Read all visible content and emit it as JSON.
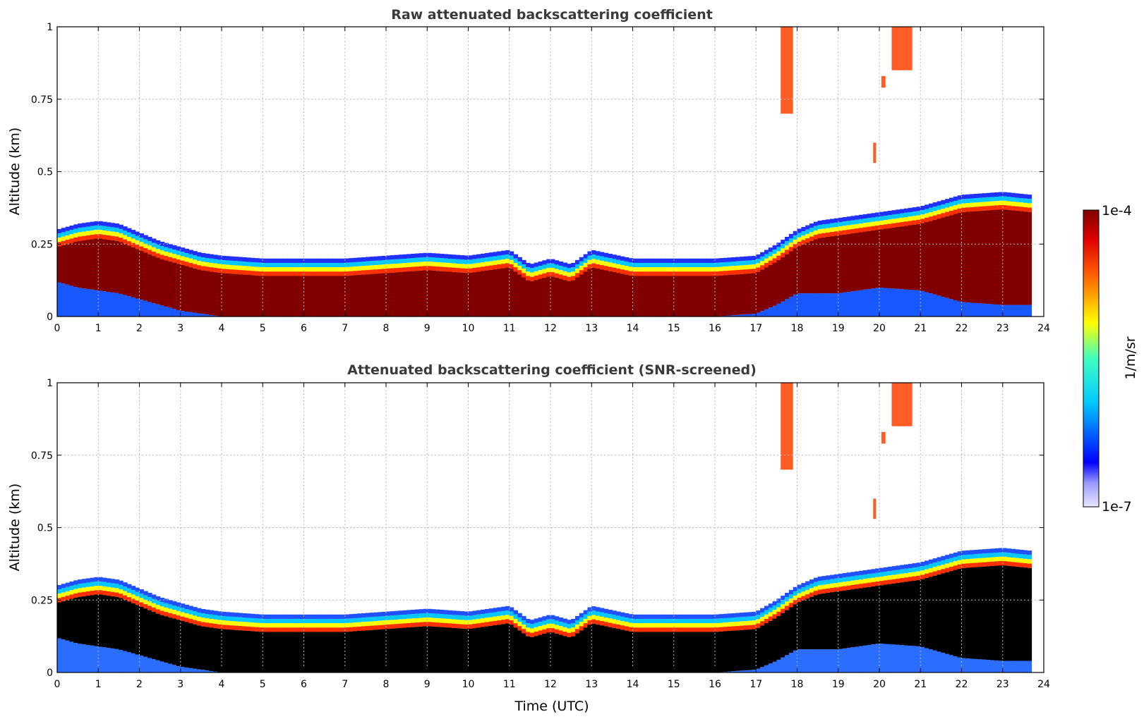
{
  "chart_data": [
    {
      "type": "heatmap",
      "title": "Raw attenuated backscattering coefficient",
      "xlabel": "",
      "ylabel": "Altitude (km)",
      "xlim": [
        0,
        24
      ],
      "ylim": [
        0,
        1
      ],
      "x_ticks": [
        0,
        1,
        2,
        3,
        4,
        5,
        6,
        7,
        8,
        9,
        10,
        11,
        12,
        13,
        14,
        15,
        16,
        17,
        18,
        19,
        20,
        21,
        22,
        23,
        24
      ],
      "y_ticks": [
        0,
        0.25,
        0.5,
        0.75,
        1
      ],
      "y_tick_labels": [
        "0",
        "0.25",
        "0.5",
        "0.75",
        "1"
      ],
      "grid": true,
      "colorscale": "jet",
      "screened": false
    },
    {
      "type": "heatmap",
      "title": "Attenuated backscattering coefficient (SNR-screened)",
      "xlabel": "Time (UTC)",
      "ylabel": "Altitude (km)",
      "xlim": [
        0,
        24
      ],
      "ylim": [
        0,
        1
      ],
      "x_ticks": [
        0,
        1,
        2,
        3,
        4,
        5,
        6,
        7,
        8,
        9,
        10,
        11,
        12,
        13,
        14,
        15,
        16,
        17,
        18,
        19,
        20,
        21,
        22,
        23,
        24
      ],
      "y_ticks": [
        0,
        0.25,
        0.5,
        0.75,
        1
      ],
      "y_tick_labels": [
        "0",
        "0.25",
        "0.5",
        "0.75",
        "1"
      ],
      "grid": true,
      "colorscale": "jet",
      "screened": true
    }
  ],
  "colorbar": {
    "label": "1/m/sr",
    "max_label": "1e-4",
    "min_label": "1e-7",
    "scale": "log",
    "range": [
      1e-07,
      0.0001
    ]
  },
  "boundary_layer": {
    "time": [
      0,
      0.5,
      1,
      1.5,
      2,
      2.5,
      3,
      3.5,
      4,
      5,
      6,
      7,
      8,
      9,
      10,
      11,
      11.5,
      12,
      12.5,
      13,
      14,
      15,
      16,
      17,
      17.5,
      18,
      18.5,
      19,
      20,
      21,
      22,
      23,
      23.7
    ],
    "top_km": [
      0.3,
      0.32,
      0.33,
      0.32,
      0.29,
      0.26,
      0.24,
      0.22,
      0.21,
      0.2,
      0.2,
      0.2,
      0.21,
      0.22,
      0.21,
      0.23,
      0.18,
      0.2,
      0.18,
      0.23,
      0.2,
      0.2,
      0.2,
      0.21,
      0.25,
      0.3,
      0.33,
      0.34,
      0.36,
      0.38,
      0.42,
      0.43,
      0.42
    ],
    "lower_km": [
      0.12,
      0.1,
      0.09,
      0.08,
      0.06,
      0.04,
      0.02,
      0.01,
      0,
      0,
      0,
      0,
      0,
      0,
      0,
      0,
      0,
      0,
      0,
      0,
      0,
      0,
      0,
      0.01,
      0.04,
      0.08,
      0.08,
      0.08,
      0.1,
      0.09,
      0.05,
      0.04,
      0.04
    ]
  },
  "cloud_patches": [
    {
      "t0": 17.6,
      "t1": 17.9,
      "z0": 0.7,
      "z1": 1.0
    },
    {
      "t0": 20.3,
      "t1": 20.8,
      "z0": 0.85,
      "z1": 1.0
    },
    {
      "t0": 20.05,
      "t1": 20.15,
      "z0": 0.79,
      "z1": 0.83
    },
    {
      "t0": 19.85,
      "t1": 19.92,
      "z0": 0.53,
      "z1": 0.6
    }
  ]
}
